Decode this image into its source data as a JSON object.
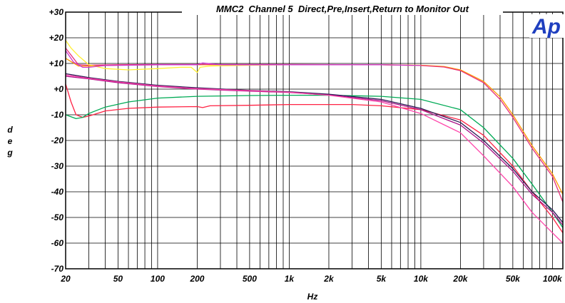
{
  "chart_data": {
    "type": "line",
    "title": "MMC2  Channel 5  Direct,Pre,Insert,Return to Monitor Out",
    "xlabel": "Hz",
    "ylabel": "deg",
    "xscale": "log",
    "xlim": [
      20,
      120000
    ],
    "ylim": [
      -70,
      30
    ],
    "grid": true,
    "x_ticks": [
      {
        "value": 20,
        "label": "20"
      },
      {
        "value": 50,
        "label": "50"
      },
      {
        "value": 100,
        "label": "100"
      },
      {
        "value": 200,
        "label": "200"
      },
      {
        "value": 500,
        "label": "500"
      },
      {
        "value": 1000,
        "label": "1k"
      },
      {
        "value": 2000,
        "label": "2k"
      },
      {
        "value": 5000,
        "label": "5k"
      },
      {
        "value": 10000,
        "label": "10k"
      },
      {
        "value": 20000,
        "label": "20k"
      },
      {
        "value": 50000,
        "label": "50k"
      },
      {
        "value": 100000,
        "label": "100k"
      }
    ],
    "y_ticks": [
      {
        "value": 30,
        "label": "+30"
      },
      {
        "value": 20,
        "label": "+20"
      },
      {
        "value": 10,
        "label": "+10"
      },
      {
        "value": 0,
        "label": "+0"
      },
      {
        "value": -10,
        "label": "-10"
      },
      {
        "value": -20,
        "label": "-20"
      },
      {
        "value": -30,
        "label": "-30"
      },
      {
        "value": -40,
        "label": "-40"
      },
      {
        "value": -50,
        "label": "-50"
      },
      {
        "value": -60,
        "label": "-60"
      },
      {
        "value": -70,
        "label": "-70"
      }
    ],
    "logo_text": "Ap",
    "series": [
      {
        "color": "#ff9900",
        "x": [
          20,
          25,
          30,
          50,
          100,
          1000,
          5000,
          10000,
          15000,
          20000,
          30000,
          40000,
          50000,
          70000,
          100000,
          120000
        ],
        "y": [
          12,
          9,
          9,
          9.3,
          9.5,
          9.5,
          9.5,
          9.3,
          8.8,
          7.5,
          3,
          -3,
          -10,
          -22,
          -33,
          -41
        ]
      },
      {
        "color": "#e8307a",
        "x": [
          20,
          25,
          30,
          50,
          100,
          1000,
          5000,
          10000,
          15000,
          20000,
          30000,
          40000,
          50000,
          70000,
          100000,
          120000
        ],
        "y": [
          16,
          9.5,
          9.3,
          9.5,
          9.6,
          9.6,
          9.5,
          9.2,
          8.6,
          7.2,
          2.5,
          -4,
          -11,
          -23,
          -34,
          -44
        ]
      },
      {
        "color": "#ffee33",
        "x": [
          20,
          22,
          25,
          30,
          40,
          60,
          100,
          150,
          180,
          200,
          210,
          250,
          500,
          1000,
          5000,
          10000
        ],
        "y": [
          19,
          16,
          13,
          9.5,
          8,
          7.5,
          8,
          8.5,
          8.5,
          6.5,
          8.5,
          9,
          9.3,
          9.5,
          9.5,
          9.2
        ]
      },
      {
        "color": "#cc33cc",
        "x": [
          20,
          23,
          27,
          30,
          40,
          60,
          100,
          200,
          220,
          300,
          500,
          1000,
          5000,
          10000
        ],
        "y": [
          15,
          10.5,
          8.5,
          8.5,
          9.2,
          9.3,
          9.5,
          9.5,
          10.2,
          9.5,
          9.5,
          9.5,
          9.5,
          9.2
        ]
      },
      {
        "color": "#ff2244",
        "x": [
          20,
          22,
          24,
          27,
          30,
          40,
          60,
          100,
          200,
          220,
          250,
          500,
          1000,
          2000,
          3000,
          5000,
          10000,
          20000,
          30000,
          50000,
          70000,
          100000,
          120000
        ],
        "y": [
          2,
          -5,
          -10,
          -11,
          -10.5,
          -8.5,
          -7.5,
          -7,
          -6.8,
          -7.2,
          -6.5,
          -6.3,
          -6,
          -6,
          -6,
          -6.5,
          -8,
          -12,
          -18,
          -30,
          -40,
          -50,
          -56
        ]
      },
      {
        "color": "#00aa55",
        "x": [
          20,
          24,
          27,
          30,
          40,
          60,
          100,
          200,
          500,
          1000,
          2000,
          5000,
          10000,
          20000,
          30000,
          50000,
          70000,
          100000,
          120000
        ],
        "y": [
          -10,
          -11.5,
          -11,
          -9.5,
          -7,
          -5,
          -3.5,
          -2.8,
          -2.5,
          -2.4,
          -2.4,
          -2.8,
          -4,
          -8,
          -15,
          -27,
          -37,
          -48,
          -54
        ]
      },
      {
        "color": "#2e1a55",
        "x": [
          20,
          30,
          50,
          100,
          200,
          500,
          1000,
          2000,
          5000,
          10000,
          20000,
          30000,
          50000,
          70000,
          100000,
          120000
        ],
        "y": [
          6,
          4.5,
          3,
          1.5,
          0.5,
          -0.5,
          -1,
          -2,
          -4,
          -7.5,
          -13,
          -20,
          -31,
          -40,
          -47,
          -52
        ]
      },
      {
        "color": "#aa1188",
        "x": [
          20,
          30,
          50,
          100,
          200,
          500,
          1000,
          2000,
          5000,
          10000,
          20000,
          30000,
          50000,
          70000,
          100000,
          120000
        ],
        "y": [
          5,
          4,
          2.5,
          1,
          0,
          -0.8,
          -1.3,
          -2.3,
          -4.5,
          -8,
          -14,
          -21,
          -32,
          -41,
          -48,
          -53
        ]
      },
      {
        "color": "#ff44aa",
        "x": [
          20,
          30,
          50,
          100,
          200,
          500,
          1000,
          2000,
          5000,
          10000,
          20000,
          30000,
          50000,
          70000,
          100000,
          120000
        ],
        "y": [
          5.5,
          4.2,
          2.8,
          1.2,
          0.2,
          -0.6,
          -1.2,
          -2.4,
          -5,
          -9.5,
          -17,
          -26,
          -38,
          -48,
          -56,
          -60
        ]
      }
    ]
  }
}
